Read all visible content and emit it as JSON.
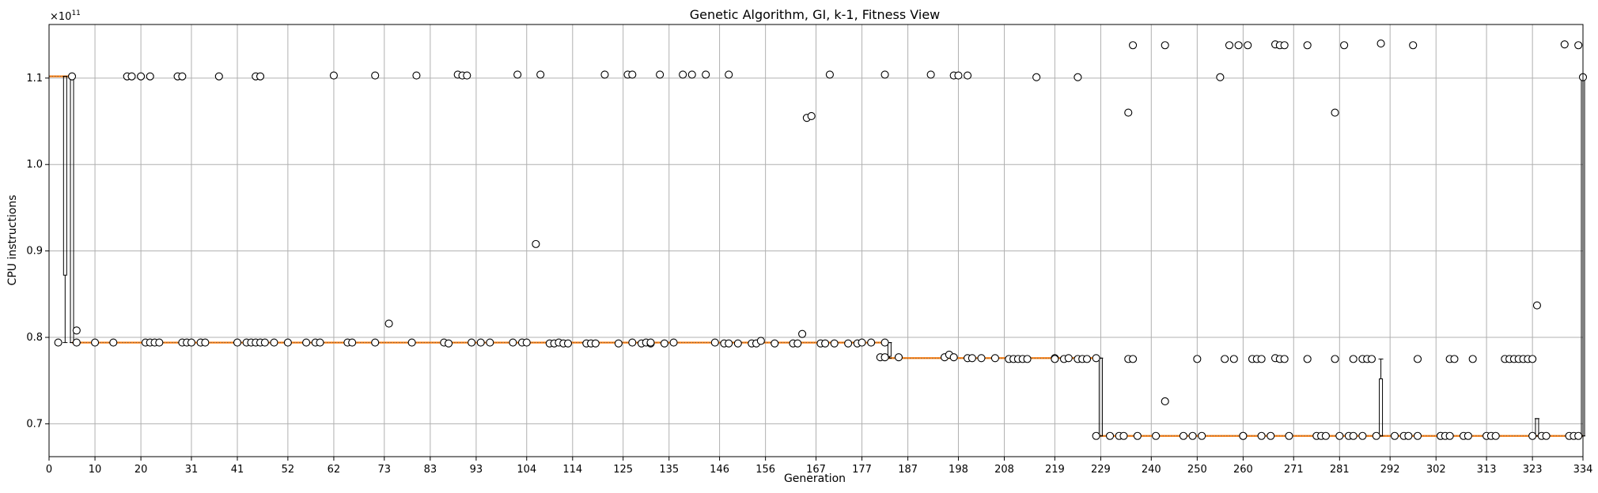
{
  "chart_data": {
    "type": "box",
    "title": "Genetic Algorithm, GI, k-1, Fitness View",
    "xlabel": "Generation",
    "ylabel": "CPU instructions",
    "offset_text": "×10",
    "offset_exponent": "11",
    "y_scale": 100000000000.0,
    "xlim": [
      0,
      334
    ],
    "ylim": [
      0.662,
      1.162
    ],
    "grid": true,
    "x_ticks": [
      0,
      10,
      20,
      31,
      41,
      52,
      62,
      73,
      83,
      93,
      104,
      114,
      125,
      135,
      146,
      156,
      167,
      177,
      187,
      198,
      208,
      219,
      229,
      240,
      250,
      260,
      271,
      281,
      292,
      302,
      313,
      323,
      334
    ],
    "y_ticks": [
      0.7,
      0.8,
      0.9,
      1.0,
      1.1
    ],
    "y_tick_labels": [
      "0.7",
      "0.8",
      "0.9",
      "1.0",
      "1.1"
    ],
    "median_segments": [
      {
        "x0": 0,
        "x1": 5,
        "y": 1.102
      },
      {
        "x0": 5,
        "x1": 182,
        "y": 0.794
      },
      {
        "x0": 182,
        "x1": 228,
        "y": 0.776
      },
      {
        "x0": 228,
        "x1": 334,
        "y": 0.686
      }
    ],
    "boxes": [
      {
        "x": 3.5,
        "q1": 0.872,
        "q3": 1.102,
        "wlow": 0.794,
        "whigh": 1.102
      },
      {
        "x": 5,
        "q1": 0.794,
        "q3": 1.102,
        "wlow": 0.794,
        "whigh": 1.102
      },
      {
        "x": 183,
        "q1": 0.778,
        "q3": 0.794,
        "wlow": 0.776,
        "whigh": 0.794
      },
      {
        "x": 229,
        "q1": 0.686,
        "q3": 0.776,
        "wlow": 0.686,
        "whigh": 0.776
      },
      {
        "x": 290,
        "q1": 0.686,
        "q3": 0.752,
        "wlow": 0.686,
        "whigh": 0.775
      },
      {
        "x": 324,
        "q1": 0.686,
        "q3": 0.706,
        "wlow": 0.686,
        "whigh": 0.706
      },
      {
        "x": 334,
        "q1": 0.686,
        "q3": 1.1,
        "wlow": 0.686,
        "whigh": 1.1
      }
    ],
    "outliers": [
      [
        2,
        0.794
      ],
      [
        5,
        1.102
      ],
      [
        6,
        0.808
      ],
      [
        6,
        0.794
      ],
      [
        10,
        0.794
      ],
      [
        14,
        0.794
      ],
      [
        17,
        1.102
      ],
      [
        18,
        1.102
      ],
      [
        20,
        1.102
      ],
      [
        21,
        0.794
      ],
      [
        22,
        0.794
      ],
      [
        22,
        1.102
      ],
      [
        23,
        0.794
      ],
      [
        24,
        0.794
      ],
      [
        28,
        1.102
      ],
      [
        29,
        1.102
      ],
      [
        29,
        0.794
      ],
      [
        30,
        0.794
      ],
      [
        31,
        0.794
      ],
      [
        33,
        0.794
      ],
      [
        34,
        0.794
      ],
      [
        37,
        1.102
      ],
      [
        41,
        0.794
      ],
      [
        43,
        0.794
      ],
      [
        44,
        0.794
      ],
      [
        45,
        0.794
      ],
      [
        45,
        1.102
      ],
      [
        46,
        1.102
      ],
      [
        46,
        0.794
      ],
      [
        47,
        0.794
      ],
      [
        49,
        0.794
      ],
      [
        52,
        0.794
      ],
      [
        56,
        0.794
      ],
      [
        58,
        0.794
      ],
      [
        59,
        0.794
      ],
      [
        62,
        1.103
      ],
      [
        65,
        0.794
      ],
      [
        66,
        0.794
      ],
      [
        71,
        0.794
      ],
      [
        71,
        1.103
      ],
      [
        74,
        0.816
      ],
      [
        79,
        0.794
      ],
      [
        80,
        1.103
      ],
      [
        86,
        0.794
      ],
      [
        87,
        0.793
      ],
      [
        89,
        1.104
      ],
      [
        90,
        1.103
      ],
      [
        91,
        1.103
      ],
      [
        92,
        0.794
      ],
      [
        94,
        0.794
      ],
      [
        96,
        0.794
      ],
      [
        101,
        0.794
      ],
      [
        102,
        1.104
      ],
      [
        103,
        0.794
      ],
      [
        104,
        0.794
      ],
      [
        106,
        0.908
      ],
      [
        107,
        1.104
      ],
      [
        109,
        0.793
      ],
      [
        110,
        0.793
      ],
      [
        111,
        0.794
      ],
      [
        112,
        0.793
      ],
      [
        113,
        0.793
      ],
      [
        117,
        0.793
      ],
      [
        118,
        0.793
      ],
      [
        119,
        0.793
      ],
      [
        121,
        1.104
      ],
      [
        124,
        0.793
      ],
      [
        126,
        1.104
      ],
      [
        127,
        0.794
      ],
      [
        127,
        1.104
      ],
      [
        129,
        0.793
      ],
      [
        130,
        0.794
      ],
      [
        131,
        0.793
      ],
      [
        131,
        0.794
      ],
      [
        133,
        1.104
      ],
      [
        134,
        0.793
      ],
      [
        136,
        0.794
      ],
      [
        138,
        1.104
      ],
      [
        140,
        1.104
      ],
      [
        143,
        1.104
      ],
      [
        145,
        0.794
      ],
      [
        147,
        0.793
      ],
      [
        148,
        0.793
      ],
      [
        148,
        1.104
      ],
      [
        150,
        0.793
      ],
      [
        153,
        0.793
      ],
      [
        154,
        0.793
      ],
      [
        155,
        0.796
      ],
      [
        158,
        0.793
      ],
      [
        162,
        0.793
      ],
      [
        163,
        0.793
      ],
      [
        164,
        0.804
      ],
      [
        165,
        1.054
      ],
      [
        166,
        1.056
      ],
      [
        168,
        0.793
      ],
      [
        169,
        0.793
      ],
      [
        170,
        1.104
      ],
      [
        171,
        0.793
      ],
      [
        174,
        0.793
      ],
      [
        176,
        0.793
      ],
      [
        177,
        0.794
      ],
      [
        179,
        0.794
      ],
      [
        181,
        0.777
      ],
      [
        182,
        0.777
      ],
      [
        182,
        1.104
      ],
      [
        182,
        0.794
      ],
      [
        185,
        0.777
      ],
      [
        192,
        1.104
      ],
      [
        195,
        0.777
      ],
      [
        196,
        0.78
      ],
      [
        197,
        1.103
      ],
      [
        197,
        0.777
      ],
      [
        198,
        1.103
      ],
      [
        200,
        0.776
      ],
      [
        200,
        1.103
      ],
      [
        201,
        0.776
      ],
      [
        203,
        0.776
      ],
      [
        206,
        0.776
      ],
      [
        209,
        0.775
      ],
      [
        210,
        0.775
      ],
      [
        211,
        0.775
      ],
      [
        212,
        0.775
      ],
      [
        213,
        0.775
      ],
      [
        215,
        1.101
      ],
      [
        219,
        0.776
      ],
      [
        219,
        0.775
      ],
      [
        221,
        0.775
      ],
      [
        222,
        0.776
      ],
      [
        224,
        0.775
      ],
      [
        224,
        1.101
      ],
      [
        225,
        0.775
      ],
      [
        226,
        0.775
      ],
      [
        228,
        0.776
      ],
      [
        228,
        0.686
      ],
      [
        231,
        0.686
      ],
      [
        233,
        0.686
      ],
      [
        234,
        0.686
      ],
      [
        235,
        0.775
      ],
      [
        235,
        1.06
      ],
      [
        236,
        0.775
      ],
      [
        236,
        1.138
      ],
      [
        237,
        0.686
      ],
      [
        241,
        0.686
      ],
      [
        243,
        0.726
      ],
      [
        243,
        1.138
      ],
      [
        247,
        0.686
      ],
      [
        249,
        0.686
      ],
      [
        250,
        0.775
      ],
      [
        251,
        0.686
      ],
      [
        255,
        1.101
      ],
      [
        256,
        0.775
      ],
      [
        257,
        1.138
      ],
      [
        258,
        0.775
      ],
      [
        259,
        1.138
      ],
      [
        260,
        0.686
      ],
      [
        260,
        0.686
      ],
      [
        261,
        1.138
      ],
      [
        262,
        0.775
      ],
      [
        263,
        0.775
      ],
      [
        264,
        0.686
      ],
      [
        264,
        0.775
      ],
      [
        266,
        0.686
      ],
      [
        267,
        1.139
      ],
      [
        267,
        0.776
      ],
      [
        268,
        0.775
      ],
      [
        268,
        1.138
      ],
      [
        269,
        0.775
      ],
      [
        269,
        1.138
      ],
      [
        270,
        0.686
      ],
      [
        274,
        1.138
      ],
      [
        274,
        0.775
      ],
      [
        276,
        0.686
      ],
      [
        277,
        0.686
      ],
      [
        278,
        0.686
      ],
      [
        280,
        1.06
      ],
      [
        280,
        0.775
      ],
      [
        281,
        0.686
      ],
      [
        282,
        1.138
      ],
      [
        283,
        0.686
      ],
      [
        284,
        0.686
      ],
      [
        284,
        0.775
      ],
      [
        286,
        0.686
      ],
      [
        286,
        0.775
      ],
      [
        287,
        0.775
      ],
      [
        288,
        0.775
      ],
      [
        289,
        0.686
      ],
      [
        290,
        1.14
      ],
      [
        293,
        0.686
      ],
      [
        295,
        0.686
      ],
      [
        296,
        0.686
      ],
      [
        297,
        1.138
      ],
      [
        298,
        0.686
      ],
      [
        298,
        0.775
      ],
      [
        303,
        0.686
      ],
      [
        303,
        0.686
      ],
      [
        304,
        0.686
      ],
      [
        305,
        0.686
      ],
      [
        305,
        0.775
      ],
      [
        306,
        0.775
      ],
      [
        308,
        0.686
      ],
      [
        309,
        0.686
      ],
      [
        310,
        0.775
      ],
      [
        313,
        0.686
      ],
      [
        314,
        0.686
      ],
      [
        315,
        0.686
      ],
      [
        317,
        0.775
      ],
      [
        318,
        0.775
      ],
      [
        319,
        0.775
      ],
      [
        320,
        0.775
      ],
      [
        321,
        0.775
      ],
      [
        322,
        0.775
      ],
      [
        323,
        0.686
      ],
      [
        323,
        0.775
      ],
      [
        324,
        0.837
      ],
      [
        325,
        0.686
      ],
      [
        326,
        0.686
      ],
      [
        330,
        1.139
      ],
      [
        331,
        0.686
      ],
      [
        332,
        0.686
      ],
      [
        333,
        0.686
      ],
      [
        333,
        1.138
      ],
      [
        334,
        1.101
      ]
    ]
  },
  "colors": {
    "grid": "#b0b0b0",
    "median": "#ff7f0e",
    "axes": "#000000",
    "marker_face": "#ffffff",
    "marker_edge": "#000000"
  }
}
